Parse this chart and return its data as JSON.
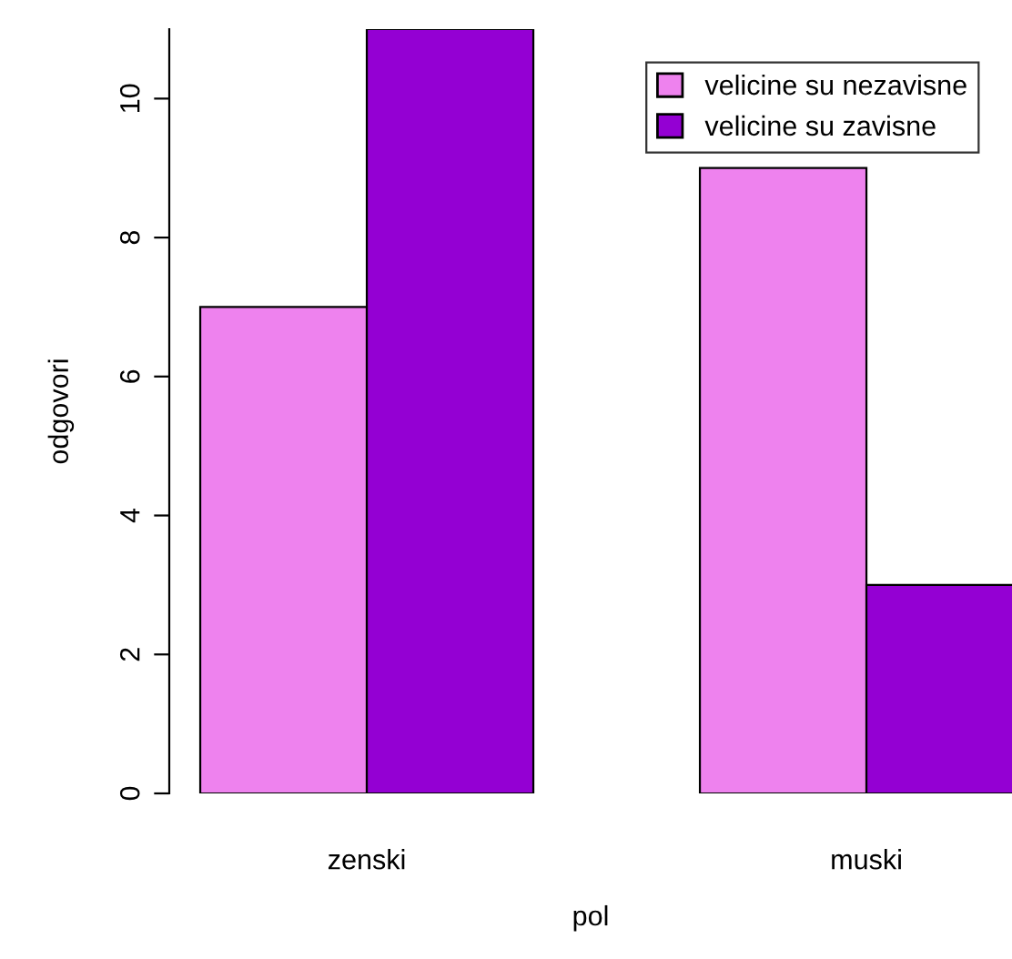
{
  "chart_data": {
    "type": "bar",
    "xlabel": "pol",
    "ylabel": "odgovori",
    "categories": [
      "zenski",
      "muski"
    ],
    "series": [
      {
        "name": "velicine su nezavisne",
        "color": "#ee82ee",
        "values": [
          7,
          9
        ]
      },
      {
        "name": "velicine su zavisne",
        "color": "#9400d3",
        "values": [
          11,
          3
        ]
      }
    ],
    "ylim": [
      0,
      11
    ],
    "yticks": [
      0,
      2,
      4,
      6,
      8,
      10
    ],
    "grid": false,
    "legend": "top right"
  }
}
